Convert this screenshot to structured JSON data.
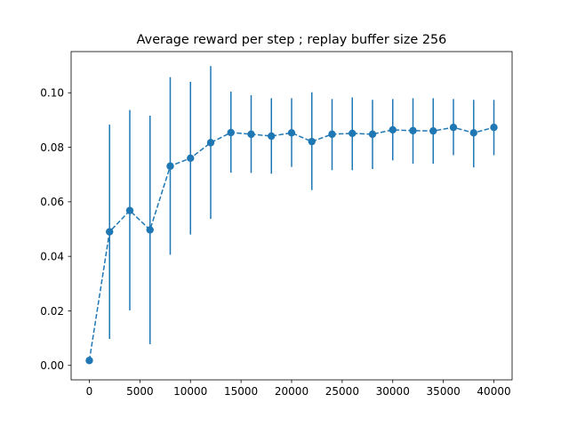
{
  "chart_data": {
    "type": "line",
    "title": "Average reward per step ; replay buffer size 256",
    "xlabel": "",
    "ylabel": "",
    "xlim": [
      -1800,
      41800
    ],
    "ylim": [
      -0.0053,
      0.1151
    ],
    "x_ticks": [
      0,
      5000,
      10000,
      15000,
      20000,
      25000,
      30000,
      35000,
      40000
    ],
    "x_tick_labels": [
      "0",
      "5000",
      "10000",
      "15000",
      "20000",
      "25000",
      "30000",
      "35000",
      "40000"
    ],
    "y_ticks": [
      0.0,
      0.02,
      0.04,
      0.06,
      0.08,
      0.1
    ],
    "y_tick_labels": [
      "0.00",
      "0.02",
      "0.04",
      "0.06",
      "0.08",
      "0.10"
    ],
    "grid": false,
    "line_style": "dashed",
    "marker": "circle",
    "color": "#1f77b4",
    "series": [
      {
        "x": [
          0,
          2000,
          4000,
          6000,
          8000,
          10000,
          12000,
          14000,
          16000,
          18000,
          20000,
          22000,
          24000,
          26000,
          28000,
          30000,
          32000,
          34000,
          36000,
          38000,
          40000
        ],
        "values": [
          0.0018,
          0.049,
          0.0568,
          0.0497,
          0.0731,
          0.076,
          0.0817,
          0.0854,
          0.0848,
          0.0841,
          0.0853,
          0.0821,
          0.0848,
          0.0851,
          0.0848,
          0.0864,
          0.0861,
          0.086,
          0.0873,
          0.0853,
          0.0873
        ],
        "err_low": [
          0.0018,
          0.0097,
          0.0202,
          0.0078,
          0.0406,
          0.048,
          0.0537,
          0.0707,
          0.0706,
          0.0703,
          0.0728,
          0.0643,
          0.0716,
          0.0716,
          0.072,
          0.0752,
          0.074,
          0.074,
          0.0771,
          0.0726,
          0.0771
        ],
        "err_high": [
          0.0018,
          0.0883,
          0.0937,
          0.0916,
          0.1057,
          0.104,
          0.1098,
          0.1004,
          0.0991,
          0.098,
          0.098,
          0.1002,
          0.0977,
          0.0983,
          0.0974,
          0.0977,
          0.098,
          0.098,
          0.0977,
          0.0974,
          0.0974
        ]
      }
    ]
  }
}
